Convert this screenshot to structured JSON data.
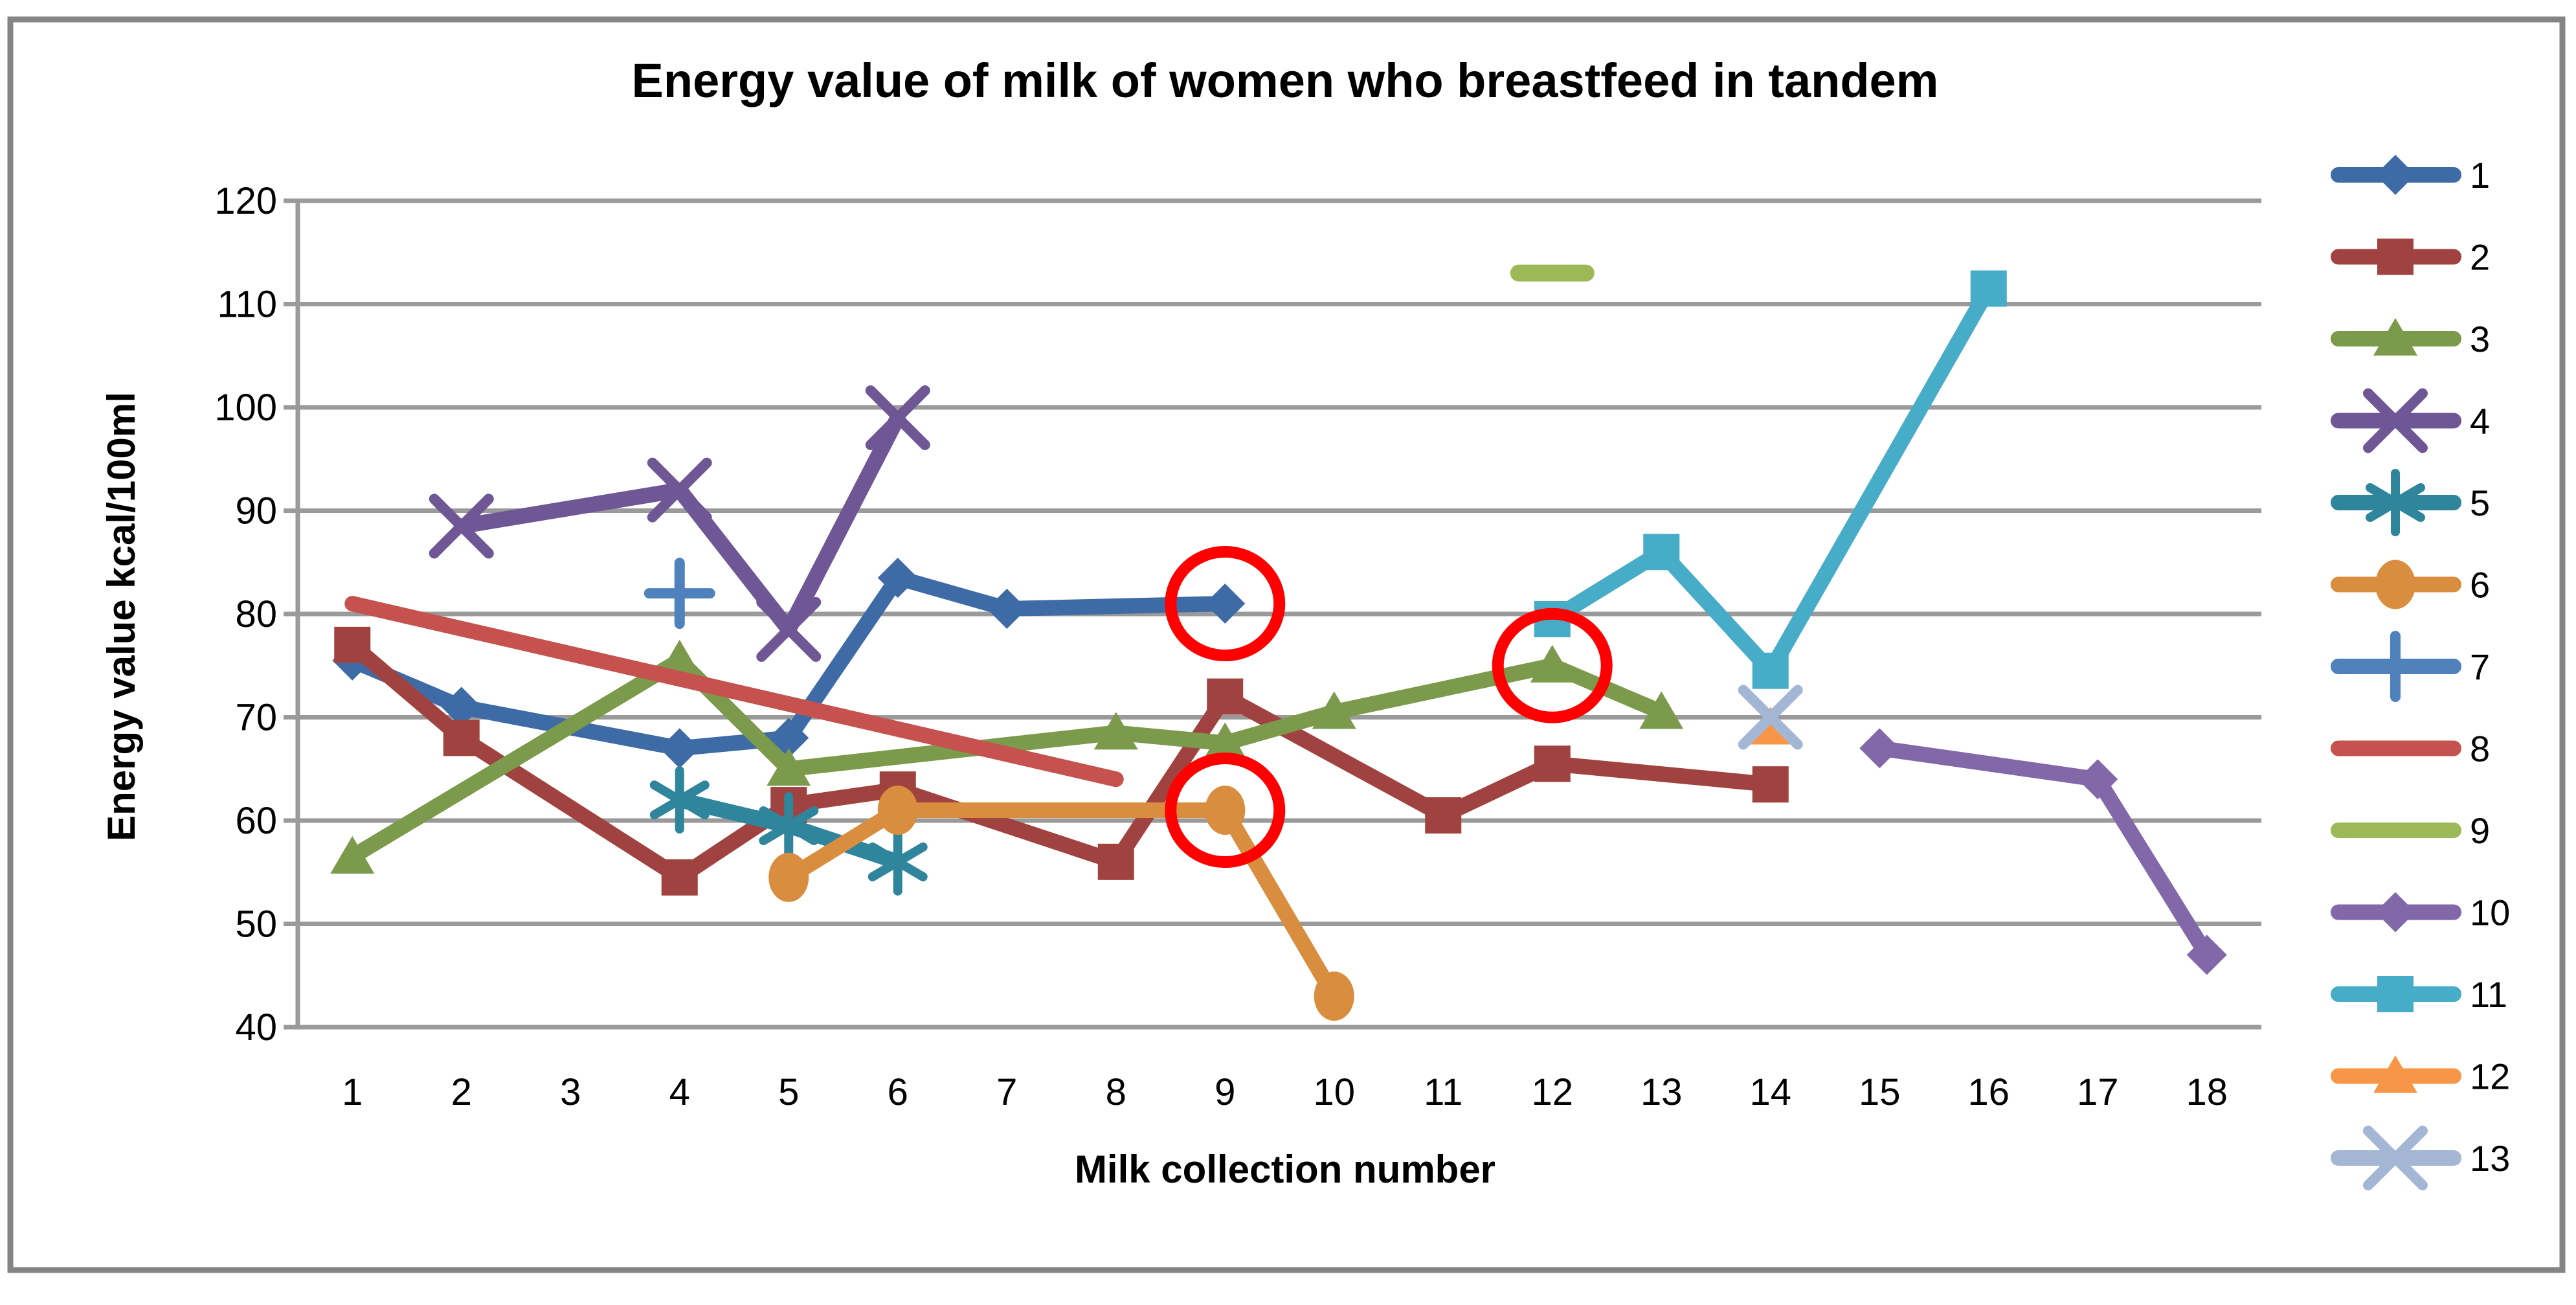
{
  "chart_data": {
    "type": "line",
    "title": "Energy value of milk of women who breastfeed in tandem",
    "xlabel": "Milk collection number",
    "ylabel": "Energy value kcal/100ml",
    "x_categories": [
      "1",
      "2",
      "3",
      "4",
      "5",
      "6",
      "7",
      "8",
      "9",
      "10",
      "11",
      "12",
      "13",
      "14",
      "15",
      "16",
      "17",
      "18"
    ],
    "yticks": [
      120,
      110,
      100,
      90,
      80,
      70,
      60,
      50,
      40
    ],
    "ylim": [
      40,
      120
    ],
    "grid": "horizontal-only",
    "legend_position": "right",
    "gridline_color": "#9A9A9A",
    "border_color": "#848484",
    "series": [
      {
        "name": "1",
        "color": "#3E6BA6",
        "marker": "diamond",
        "points": [
          [
            1,
            75.5
          ],
          [
            2,
            71
          ],
          [
            4,
            67
          ],
          [
            5,
            68
          ],
          [
            6,
            83.5
          ],
          [
            7,
            80.5
          ],
          [
            9,
            81
          ]
        ]
      },
      {
        "name": "2",
        "color": "#A04340",
        "marker": "square",
        "points": [
          [
            1,
            77
          ],
          [
            2,
            68
          ],
          [
            4,
            54.5
          ],
          [
            5,
            61.5
          ],
          [
            6,
            63
          ],
          [
            8,
            56
          ],
          [
            9,
            72
          ],
          [
            11,
            60.5
          ],
          [
            12,
            65.5
          ],
          [
            14,
            63.5
          ]
        ]
      },
      {
        "name": "3",
        "color": "#7C9A4B",
        "marker": "triangle",
        "points": [
          [
            1,
            56.5
          ],
          [
            4,
            75.5
          ],
          [
            5,
            65
          ],
          [
            8,
            68.5
          ],
          [
            9,
            67.5
          ],
          [
            10,
            70.5
          ],
          [
            12,
            75
          ],
          [
            13,
            70.5
          ]
        ]
      },
      {
        "name": "4",
        "color": "#6F5795",
        "marker": "x",
        "points": [
          [
            2,
            88.5
          ],
          [
            4,
            92
          ],
          [
            5,
            78.5
          ],
          [
            6,
            99
          ]
        ]
      },
      {
        "name": "5",
        "color": "#2F859C",
        "marker": "asterisk",
        "points": [
          [
            4,
            62
          ],
          [
            5,
            59.5
          ],
          [
            6,
            56
          ]
        ]
      },
      {
        "name": "6",
        "color": "#D98D3F",
        "marker": "circle",
        "points": [
          [
            5,
            54.5
          ],
          [
            6,
            61
          ],
          [
            9,
            61
          ],
          [
            10,
            43
          ]
        ]
      },
      {
        "name": "7",
        "color": "#4F81BD",
        "marker": "plus",
        "points": [
          [
            4,
            82
          ]
        ]
      },
      {
        "name": "8",
        "color": "#C5524E",
        "marker": "none",
        "points": [
          [
            1,
            81
          ],
          [
            8,
            64
          ]
        ]
      },
      {
        "name": "9",
        "color": "#9CB957",
        "marker": "none",
        "points": [
          [
            12,
            113
          ]
        ]
      },
      {
        "name": "10",
        "color": "#8268A9",
        "marker": "diamond",
        "points": [
          [
            15,
            67
          ],
          [
            17,
            64
          ],
          [
            18,
            47
          ]
        ]
      },
      {
        "name": "11",
        "color": "#47ACC7",
        "marker": "square",
        "points": [
          [
            12,
            79.5
          ],
          [
            13,
            86
          ],
          [
            14,
            74.5
          ],
          [
            16,
            111.5
          ]
        ]
      },
      {
        "name": "12",
        "color": "#F79646",
        "marker": "triangle",
        "points": [
          [
            14,
            69
          ]
        ]
      },
      {
        "name": "13",
        "color": "#A3B6D4",
        "marker": "x",
        "points": [
          [
            14,
            70
          ]
        ]
      }
    ],
    "annotations": {
      "shape": "ellipse",
      "color": "#FF0000",
      "items": [
        {
          "x": 9,
          "value": 81,
          "series": "1"
        },
        {
          "x": 9,
          "value": 61,
          "series": "6"
        },
        {
          "x": 12,
          "value": 75,
          "series": "3"
        }
      ]
    }
  }
}
